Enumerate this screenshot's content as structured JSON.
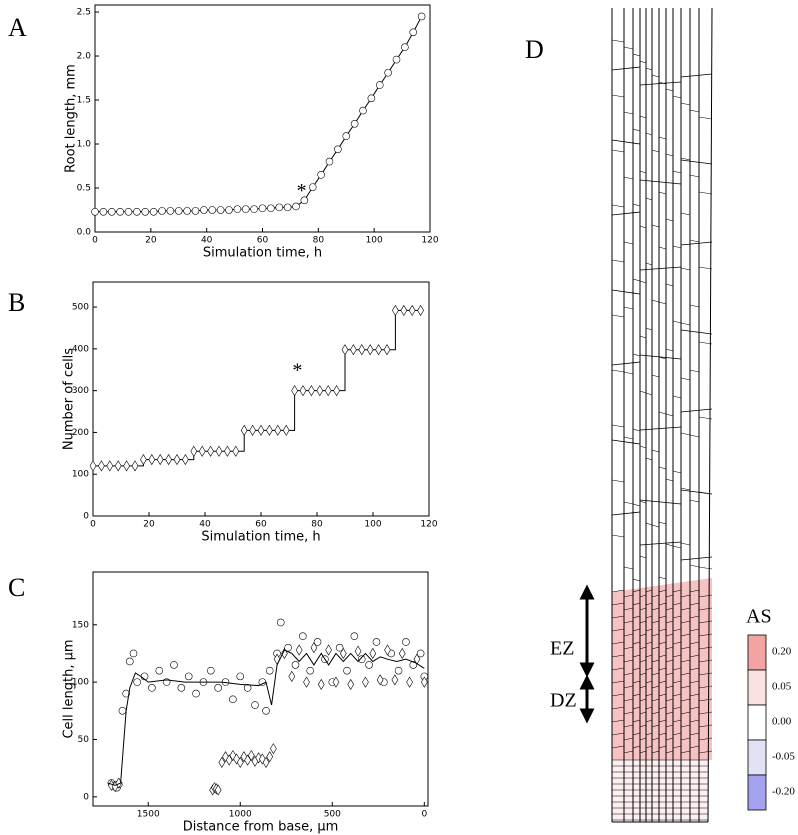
{
  "chart_data": [
    {
      "type": "scatter",
      "panel": "A",
      "xlabel": "Simulation time, h",
      "ylabel": "Root length, mm",
      "annotation": "*",
      "xlim": [
        0,
        120
      ],
      "xticks": [
        0,
        20,
        40,
        60,
        80,
        100,
        120
      ],
      "ylim": [
        0,
        2.58
      ],
      "yticks": [
        {
          "value": 0,
          "label": "0.0"
        },
        0.5,
        {
          "value": 1,
          "label": "1.0"
        },
        1.5,
        {
          "value": 2,
          "label": "2.0"
        },
        2.5
      ],
      "series": [
        {
          "marker": "circle",
          "line": true,
          "color": "#000000",
          "x": [
            0,
            3,
            6,
            9,
            12,
            15,
            18,
            21,
            24,
            27,
            30,
            33,
            36,
            39,
            42,
            45,
            48,
            51,
            54,
            57,
            60,
            63,
            66,
            69,
            72,
            75,
            78,
            81,
            84,
            87,
            90,
            93,
            96,
            99,
            102,
            105,
            108,
            111,
            114,
            117
          ],
          "values": [
            0.23,
            0.23,
            0.23,
            0.23,
            0.23,
            0.23,
            0.23,
            0.23,
            0.24,
            0.24,
            0.24,
            0.24,
            0.24,
            0.25,
            0.25,
            0.25,
            0.25,
            0.26,
            0.26,
            0.26,
            0.27,
            0.27,
            0.28,
            0.28,
            0.29,
            0.36,
            0.51,
            0.65,
            0.8,
            0.94,
            1.09,
            1.23,
            1.38,
            1.52,
            1.67,
            1.81,
            1.96,
            2.1,
            2.27,
            2.45
          ]
        }
      ]
    },
    {
      "type": "scatter",
      "panel": "B",
      "xlabel": "Simulation time, h",
      "ylabel": "Number of cells",
      "annotation": "*",
      "xlim": [
        0,
        120
      ],
      "xticks": [
        0,
        20,
        40,
        60,
        80,
        100,
        120
      ],
      "ylim": [
        0,
        560
      ],
      "yticks": [
        0,
        100,
        200,
        300,
        400,
        500
      ],
      "series": [
        {
          "marker": "diamond",
          "line": true,
          "step": true,
          "color": "#000000",
          "x": [
            0,
            3,
            6,
            9,
            12,
            15,
            18,
            21,
            24,
            27,
            30,
            33,
            36,
            39,
            42,
            45,
            48,
            51,
            54,
            57,
            60,
            63,
            66,
            69,
            72,
            75,
            78,
            81,
            84,
            87,
            90,
            93,
            96,
            99,
            102,
            105,
            108,
            111,
            114,
            117
          ],
          "values": [
            120,
            120,
            120,
            120,
            120,
            120,
            135,
            135,
            135,
            135,
            135,
            135,
            155,
            155,
            155,
            155,
            155,
            155,
            205,
            205,
            205,
            205,
            205,
            205,
            300,
            300,
            300,
            300,
            300,
            300,
            398,
            398,
            398,
            398,
            398,
            398,
            492,
            492,
            492,
            492
          ]
        }
      ]
    },
    {
      "type": "scatter",
      "panel": "C",
      "xlabel": "Distance from base, μm",
      "ylabel": "Cell length, μm",
      "xlim": [
        1800,
        -20
      ],
      "xticks": [
        1500,
        1000,
        500,
        0
      ],
      "ylim": [
        -8,
        196
      ],
      "yticks": [
        0,
        50,
        100,
        150
      ],
      "series": [
        {
          "marker": "circle",
          "line": false,
          "color": "#000000",
          "x": [
            1700,
            1690,
            1680,
            1670,
            1660,
            1640,
            1620,
            1600,
            1580,
            1560,
            1520,
            1480,
            1440,
            1400,
            1360,
            1320,
            1280,
            1240,
            1200,
            1160,
            1120,
            1080,
            1040,
            1000,
            960,
            920,
            880,
            860,
            840,
            800,
            780,
            740,
            700,
            660,
            620,
            580,
            540,
            500,
            460,
            420,
            380,
            340,
            300,
            260,
            220,
            180,
            140,
            100,
            60,
            20,
            0
          ],
          "values": [
            12,
            9,
            10,
            8,
            11,
            75,
            90,
            118,
            125,
            100,
            105,
            95,
            110,
            100,
            115,
            95,
            105,
            90,
            100,
            110,
            95,
            100,
            85,
            105,
            95,
            80,
            100,
            75,
            110,
            125,
            152,
            130,
            115,
            140,
            110,
            135,
            120,
            100,
            130,
            110,
            140,
            120,
            115,
            135,
            100,
            125,
            110,
            135,
            115,
            125,
            105
          ]
        },
        {
          "marker": "diamond",
          "line": false,
          "color": "#000000",
          "x": [
            1700,
            1680,
            1660,
            1150,
            1140,
            1130,
            1120,
            1100,
            1080,
            1060,
            1040,
            1020,
            1000,
            980,
            960,
            940,
            920,
            900,
            880,
            860,
            840,
            820,
            800,
            760,
            720,
            680,
            640,
            600,
            560,
            520,
            480,
            440,
            400,
            360,
            320,
            280,
            240,
            200,
            160,
            120,
            80,
            40,
            0
          ],
          "values": [
            10,
            9,
            12,
            6,
            8,
            7,
            6,
            30,
            35,
            32,
            36,
            33,
            30,
            35,
            32,
            36,
            31,
            34,
            33,
            30,
            35,
            42,
            120,
            125,
            105,
            128,
            100,
            130,
            98,
            128,
            100,
            125,
            98,
            127,
            100,
            125,
            102,
            128,
            102,
            125,
            100,
            120,
            100
          ]
        },
        {
          "marker": "none",
          "line": true,
          "color": "#000000",
          "x": [
            1720,
            1680,
            1650,
            1620,
            1600,
            1570,
            1540,
            1500,
            1400,
            1300,
            1200,
            1100,
            1000,
            900,
            860,
            830,
            800,
            760,
            720,
            680,
            640,
            600,
            560,
            520,
            480,
            440,
            400,
            360,
            320,
            280,
            240,
            200,
            150,
            100,
            50,
            0
          ],
          "values": [
            12,
            10,
            12,
            75,
            95,
            108,
            105,
            100,
            102,
            100,
            100,
            100,
            98,
            97,
            100,
            80,
            115,
            128,
            125,
            118,
            125,
            115,
            125,
            115,
            125,
            118,
            125,
            118,
            125,
            118,
            122,
            120,
            118,
            120,
            117,
            112
          ]
        }
      ]
    }
  ],
  "diagram": {
    "panel": "D",
    "zones": [
      "EZ",
      "DZ"
    ],
    "legend": {
      "title": "AS",
      "colors": [
        "#f4a3a3",
        "#fbe2e2",
        "#ffffff",
        "#e2e2f7",
        "#a3a3f0"
      ],
      "labels": [
        "0.20",
        "0.05",
        "0.00",
        "-0.05",
        "-0.20"
      ]
    }
  }
}
